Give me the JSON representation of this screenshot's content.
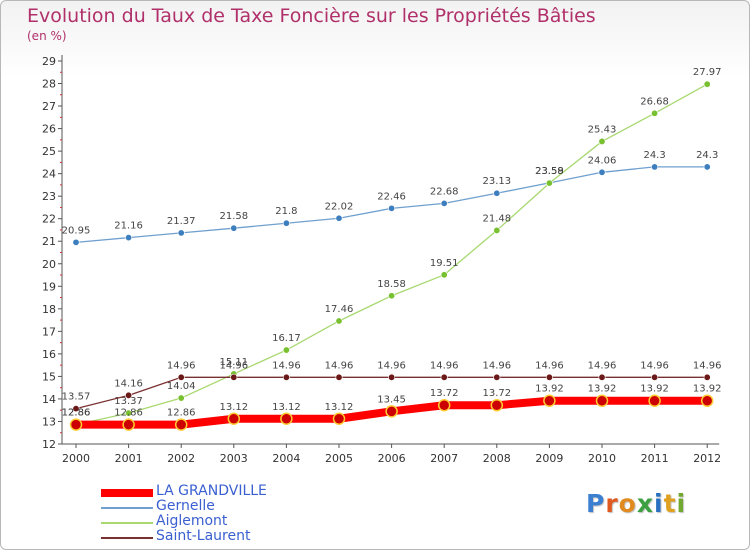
{
  "title": "Evolution du Taux de Taxe Foncière sur les Propriétés Bâties",
  "subtitle": "(en %)",
  "logo_text": "Proxiti",
  "chart_data": {
    "type": "line",
    "title": "Evolution du Taux de Taxe Foncière sur les Propriétés Bâties",
    "ylabel": "(en %)",
    "xlabel": "",
    "x": [
      2000,
      2001,
      2002,
      2003,
      2004,
      2005,
      2006,
      2007,
      2008,
      2009,
      2010,
      2011,
      2012
    ],
    "ylim": [
      12,
      29
    ],
    "yticks": [
      12,
      13,
      14,
      15,
      16,
      17,
      18,
      19,
      20,
      21,
      22,
      23,
      24,
      25,
      26,
      27,
      28,
      29
    ],
    "grid": false,
    "legend_position": "bottom-left",
    "series": [
      {
        "name": "LA GRANDVILLE",
        "color": "#ff0000",
        "marker_color": "#cc0000",
        "values": [
          12.86,
          12.86,
          12.86,
          13.12,
          13.12,
          13.12,
          13.45,
          13.72,
          13.72,
          13.92,
          13.92,
          13.92,
          13.92
        ],
        "labels": [
          "12.86",
          "12.86",
          "12.86",
          "13.12",
          "13.12",
          "13.12",
          "13.45",
          "13.72",
          "13.72",
          "13.92",
          "13.92",
          "13.92",
          "13.92"
        ]
      },
      {
        "name": "Gernelle",
        "color": "#6fa0cf",
        "marker_color": "#3d7fbe",
        "values": [
          20.95,
          21.16,
          21.37,
          21.58,
          21.8,
          22.02,
          22.46,
          22.68,
          23.13,
          23.59,
          24.06,
          24.3,
          24.3
        ],
        "labels": [
          "20.95",
          "21.16",
          "21.37",
          "21.58",
          "21.8",
          "22.02",
          "22.46",
          "22.68",
          "23.13",
          "23.59",
          "24.06",
          "24.3",
          "24.3"
        ]
      },
      {
        "name": "Aiglemont",
        "color": "#a8d870",
        "marker_color": "#78c030",
        "values": [
          12.86,
          13.37,
          14.04,
          15.11,
          16.17,
          17.46,
          18.58,
          19.51,
          21.48,
          23.58,
          25.43,
          26.68,
          27.97
        ],
        "labels": [
          "12.86",
          "13.37",
          "14.04",
          "15.11",
          "16.17",
          "17.46",
          "18.58",
          "19.51",
          "21.48",
          "23.58",
          "25.43",
          "26.68",
          "27.97"
        ]
      },
      {
        "name": "Saint-Laurent",
        "color": "#7a3030",
        "marker_color": "#6a1818",
        "values": [
          13.57,
          14.16,
          14.96,
          14.96,
          14.96,
          14.96,
          14.96,
          14.96,
          14.96,
          14.96,
          14.96,
          14.96,
          14.96
        ],
        "labels": [
          "13.57",
          "14.16",
          "14.96",
          "14.96",
          "14.96",
          "14.96",
          "14.96",
          "14.96",
          "14.96",
          "14.96",
          "14.96",
          "14.96",
          "14.96"
        ]
      }
    ]
  }
}
